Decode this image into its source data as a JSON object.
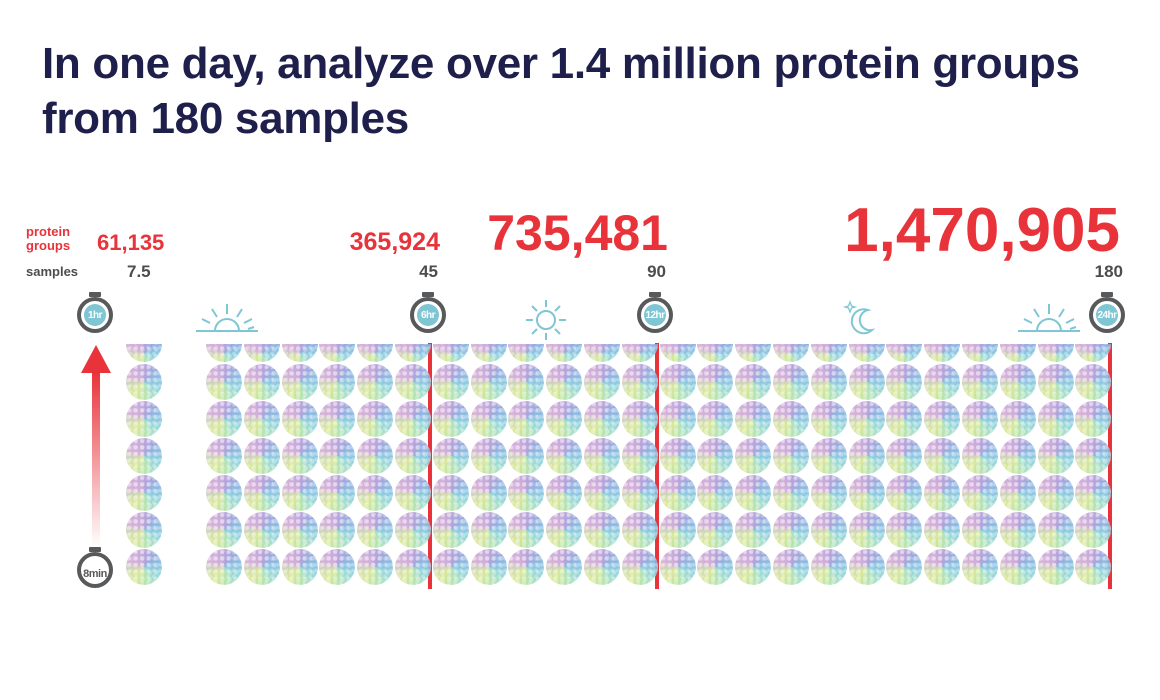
{
  "title": {
    "line1": "In one day, analyze over 1.4 million protein groups",
    "line2": "from 180 samples"
  },
  "labels": {
    "protein_groups": "protein groups",
    "samples": "samples"
  },
  "milestones": [
    {
      "time": "1hr",
      "protein_groups": "61,135",
      "samples": "7.5"
    },
    {
      "time": "6hr",
      "protein_groups": "365,924",
      "samples": "45"
    },
    {
      "time": "12hr",
      "protein_groups": "735,481",
      "samples": "90"
    },
    {
      "time": "24hr",
      "protein_groups": "1,470,905",
      "samples": "180"
    }
  ],
  "per_sample_time": "8min",
  "colors": {
    "title": "#1e1f4b",
    "accent": "#e8333b",
    "icon": "#7fc6d4",
    "watch": "#58595b"
  },
  "icons": [
    "sunrise-icon",
    "sun-icon",
    "moon-star-icon",
    "sunrise-icon"
  ]
}
